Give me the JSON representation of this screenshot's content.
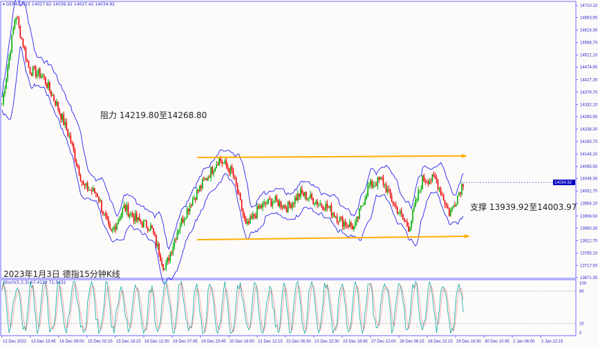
{
  "header": {
    "symbol": "GER40,M15",
    "ohlc": "14027.92 14036.92 14027.42 14034.92"
  },
  "indicator": {
    "label": "Stoch(5,3,3) 67.4129 71.3432",
    "levels": [
      "100",
      "80",
      "20",
      "0"
    ]
  },
  "annotations": {
    "resistance": "阻力 14219.80至14268.80",
    "support": "支撑 13939.92至14003.97",
    "caption": "2023年1月3日 德指15分钟K线"
  },
  "colors": {
    "bands": "#2222ee",
    "bull": "#00aa00",
    "bear": "#ee0000",
    "levels": "#ffb000",
    "current": "#0000c0"
  },
  "chart_data": {
    "type": "candlestick",
    "ylim": [
      13671.3,
      14710.1
    ],
    "y_ticks": [
      "14710.10",
      "14663.90",
      "14616.30",
      "14568.70",
      "14521.10",
      "14474.90",
      "14427.30",
      "14379.70",
      "14332.10",
      "14285.90",
      "14238.30",
      "14190.70",
      "14143.10",
      "14095.50",
      "14049.30",
      "14001.70",
      "13954.10",
      "13906.50",
      "13860.30",
      "13812.70",
      "13765.10",
      "13717.50",
      "13671.30"
    ],
    "current_price": "14034.92",
    "x_ticks": [
      "12 Dec 2022",
      "13 Dec 13:45",
      "14 Dec 08:00",
      "15 Dec 02:15",
      "15 Dec 18:15",
      "16 Dec 12:30",
      "19 Dec 07:45",
      "19 Dec 23:45",
      "20 Dec 18:00",
      "21 Dec 12:15",
      "22 Dec 06:30",
      "22 Dec 22:30",
      "23 Dec 16:45",
      "27 Dec 12:00",
      "28 Dec 06:15",
      "28 Dec 22:15",
      "29 Dec 16:30",
      "30 Dec 10:45",
      "2 Jan 06:00",
      "2 Jan 22:15"
    ],
    "approx_closes": [
      14336,
      14678,
      14467,
      14441,
      14336,
      14204,
      14019,
      13993,
      13835,
      13940,
      13888,
      13862,
      13703,
      13862,
      13967,
      14046,
      14125,
      14072,
      13862,
      13940,
      13967,
      13940,
      13993,
      13967,
      13940,
      13888,
      13862,
      14019,
      14046,
      13940,
      13862,
      14046,
      14046,
      13914,
      14035
    ],
    "resistance_line": [
      14130,
      14136
    ],
    "support_line": [
      13816,
      13829
    ],
    "stoch_levels": [
      20,
      80
    ]
  }
}
